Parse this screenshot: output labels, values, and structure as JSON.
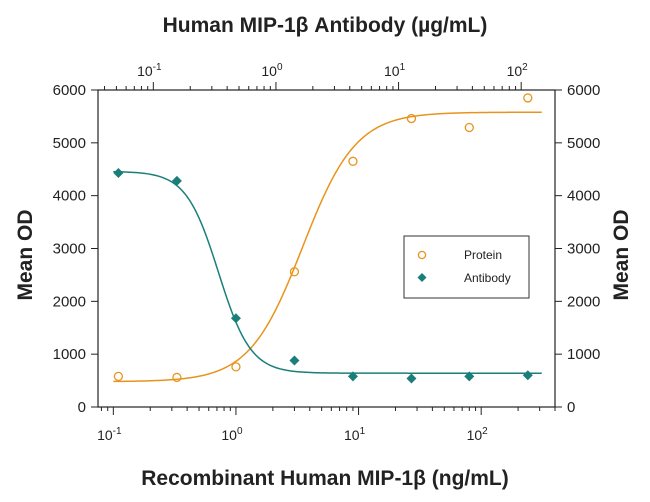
{
  "chart_data": {
    "type": "scatter",
    "top_axis_title": "Human MIP-1β Antibody (µg/mL)",
    "bottom_axis_title": "Recombinant Human MIP-1β (ng/mL)",
    "left_axis_title": "Mean OD",
    "right_axis_title": "Mean OD",
    "y_scale": "linear",
    "ylim": [
      0,
      6000
    ],
    "y_ticks": [
      0,
      1000,
      2000,
      3000,
      4000,
      5000,
      6000
    ],
    "bottom_x_scale": "log",
    "bottom_xlim": [
      0.075,
      400
    ],
    "bottom_x_ticks": [
      0.1,
      1,
      10,
      100
    ],
    "bottom_x_tick_labels": [
      {
        "base": "10",
        "exp": "-1"
      },
      {
        "base": "10",
        "exp": "0"
      },
      {
        "base": "10",
        "exp": "1"
      },
      {
        "base": "10",
        "exp": "2"
      }
    ],
    "top_x_scale": "log",
    "top_x_ticks": [
      0.1,
      1,
      10,
      100
    ],
    "top_x_tick_labels": [
      {
        "base": "10",
        "exp": "-1"
      },
      {
        "base": "10",
        "exp": "0"
      },
      {
        "base": "10",
        "exp": "1"
      },
      {
        "base": "10",
        "exp": "2"
      }
    ],
    "grid": false,
    "legend_position": "right-middle",
    "series": [
      {
        "name": "Protein",
        "marker": "open-circle",
        "color": "#e8941c",
        "x_axis": "bottom",
        "x": [
          0.11,
          0.33,
          1.0,
          3.0,
          9.0,
          27,
          80,
          240
        ],
        "y": [
          580,
          560,
          760,
          2560,
          4650,
          5460,
          5290,
          5850
        ],
        "fit": {
          "bottom": 480,
          "top": 5580,
          "ec50": 3.5,
          "hill": 2.0
        }
      },
      {
        "name": "Antibody",
        "marker": "filled-diamond",
        "color": "#1a7f7a",
        "x_axis": "bottom",
        "x": [
          0.11,
          0.33,
          1.0,
          3.0,
          9.0,
          27,
          80,
          240
        ],
        "y": [
          4430,
          4280,
          1680,
          880,
          580,
          540,
          580,
          600
        ],
        "fit": {
          "bottom": 640,
          "top": 4460,
          "ec50": 0.72,
          "hill": 3.3
        }
      }
    ]
  }
}
